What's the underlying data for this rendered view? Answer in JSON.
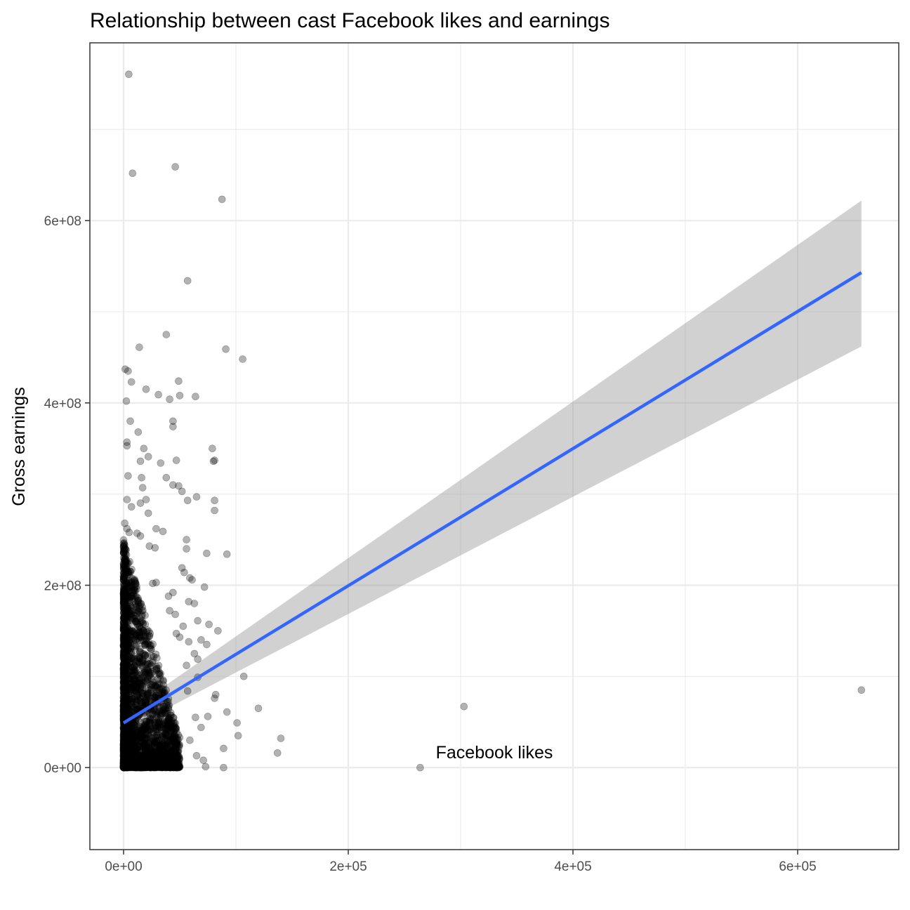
{
  "chart_data": {
    "type": "scatter",
    "title": "Relationship between cast Facebook likes and earnings",
    "xlabel": "Facebook likes",
    "ylabel": "Gross earnings",
    "xlim": [
      -30000,
      690000
    ],
    "ylim": [
      -90000000,
      795000000
    ],
    "x_ticks": [
      0,
      200000,
      400000,
      600000
    ],
    "x_tick_labels": [
      "0e+00",
      "2e+05",
      "4e+05",
      "6e+05"
    ],
    "y_ticks": [
      0,
      200000000,
      400000000,
      600000000
    ],
    "y_tick_labels": [
      "0e+00",
      "2e+08",
      "4e+08",
      "6e+08"
    ],
    "grid": true,
    "legend": "none",
    "colors": {
      "points": "#000000",
      "fit_line": "#3366ff",
      "confidence_band": "#999999",
      "grid": "#ebebeb",
      "panel_border": "#333333"
    },
    "fit": {
      "method": "linear",
      "x": [
        0,
        656730
      ],
      "y": [
        49000000,
        543000000
      ],
      "ci_lower": [
        40000000,
        462000000
      ],
      "ci_upper": [
        58000000,
        622000000
      ]
    },
    "points_outliers": [
      [
        4600,
        760500000
      ],
      [
        8000,
        652000000
      ],
      [
        46000,
        659000000
      ],
      [
        87600,
        623300000
      ],
      [
        57000,
        534000000
      ],
      [
        38000,
        475000000
      ],
      [
        91000,
        459000000
      ],
      [
        106000,
        448000000
      ],
      [
        14000,
        461000000
      ],
      [
        1500,
        437000000
      ],
      [
        4000,
        435000000
      ],
      [
        7000,
        423000000
      ],
      [
        49000,
        424000000
      ],
      [
        50000,
        408000000
      ],
      [
        64000,
        407000000
      ],
      [
        20000,
        415000000
      ],
      [
        31000,
        409000000
      ],
      [
        41000,
        404000000
      ],
      [
        2500,
        402000000
      ],
      [
        6000,
        380000000
      ],
      [
        44000,
        380000000
      ],
      [
        44000,
        374000000
      ],
      [
        13000,
        368000000
      ],
      [
        3000,
        357000000
      ],
      [
        3000,
        353000000
      ],
      [
        18000,
        350000000
      ],
      [
        79000,
        350000000
      ],
      [
        81000,
        337000000
      ],
      [
        80000,
        336000000
      ],
      [
        47000,
        337000000
      ],
      [
        15000,
        336000000
      ],
      [
        22000,
        341000000
      ],
      [
        33000,
        334000000
      ],
      [
        4000,
        320000000
      ],
      [
        16000,
        318000000
      ],
      [
        38000,
        318000000
      ],
      [
        44000,
        310000000
      ],
      [
        49000,
        309000000
      ],
      [
        52000,
        303000000
      ],
      [
        17000,
        307000000
      ],
      [
        65000,
        297000000
      ],
      [
        3000,
        294000000
      ],
      [
        7000,
        286000000
      ],
      [
        15000,
        290000000
      ],
      [
        20000,
        294000000
      ],
      [
        22000,
        279000000
      ],
      [
        57000,
        293000000
      ],
      [
        81000,
        293000000
      ],
      [
        81000,
        282000000
      ],
      [
        1000,
        268000000
      ],
      [
        3000,
        262000000
      ],
      [
        5000,
        258000000
      ],
      [
        12000,
        257000000
      ],
      [
        15000,
        254000000
      ],
      [
        29000,
        262000000
      ],
      [
        35000,
        259000000
      ],
      [
        56000,
        250000000
      ],
      [
        23000,
        243000000
      ],
      [
        28000,
        241000000
      ],
      [
        74000,
        235000000
      ],
      [
        92000,
        234000000
      ],
      [
        56000,
        240000000
      ],
      [
        52000,
        219000000
      ],
      [
        54000,
        214000000
      ],
      [
        59000,
        208000000
      ],
      [
        61000,
        206000000
      ],
      [
        72000,
        198000000
      ],
      [
        26000,
        202000000
      ],
      [
        29000,
        203000000
      ],
      [
        40000,
        188000000
      ],
      [
        44000,
        192000000
      ],
      [
        58000,
        182000000
      ],
      [
        63000,
        180000000
      ],
      [
        41000,
        172000000
      ],
      [
        46000,
        168000000
      ],
      [
        66000,
        161000000
      ],
      [
        76000,
        157000000
      ],
      [
        84000,
        150000000
      ],
      [
        53000,
        155000000
      ],
      [
        47000,
        147000000
      ],
      [
        50000,
        143000000
      ],
      [
        58000,
        138000000
      ],
      [
        69000,
        140000000
      ],
      [
        74000,
        135000000
      ],
      [
        63000,
        125000000
      ],
      [
        66000,
        119000000
      ],
      [
        56000,
        112000000
      ],
      [
        66000,
        99000000
      ],
      [
        57000,
        84000000
      ],
      [
        82000,
        80000000
      ],
      [
        81000,
        76000000
      ],
      [
        107000,
        100000000
      ],
      [
        101000,
        49000000
      ],
      [
        120000,
        65000000
      ],
      [
        92000,
        61000000
      ],
      [
        102000,
        35000000
      ],
      [
        140000,
        32000000
      ],
      [
        137000,
        16000000
      ],
      [
        89000,
        21000000
      ],
      [
        75000,
        56000000
      ],
      [
        64000,
        55000000
      ],
      [
        69000,
        44000000
      ],
      [
        59000,
        30000000
      ],
      [
        65000,
        13000000
      ],
      [
        71000,
        8000000
      ],
      [
        73000,
        1000000
      ],
      [
        89000,
        0
      ],
      [
        303000,
        67000000
      ],
      [
        264000,
        0
      ],
      [
        656730,
        85000000
      ]
    ],
    "cluster_note_x_range": [
      0,
      50000
    ],
    "cluster_note_y_range": [
      0,
      250000000
    ]
  }
}
